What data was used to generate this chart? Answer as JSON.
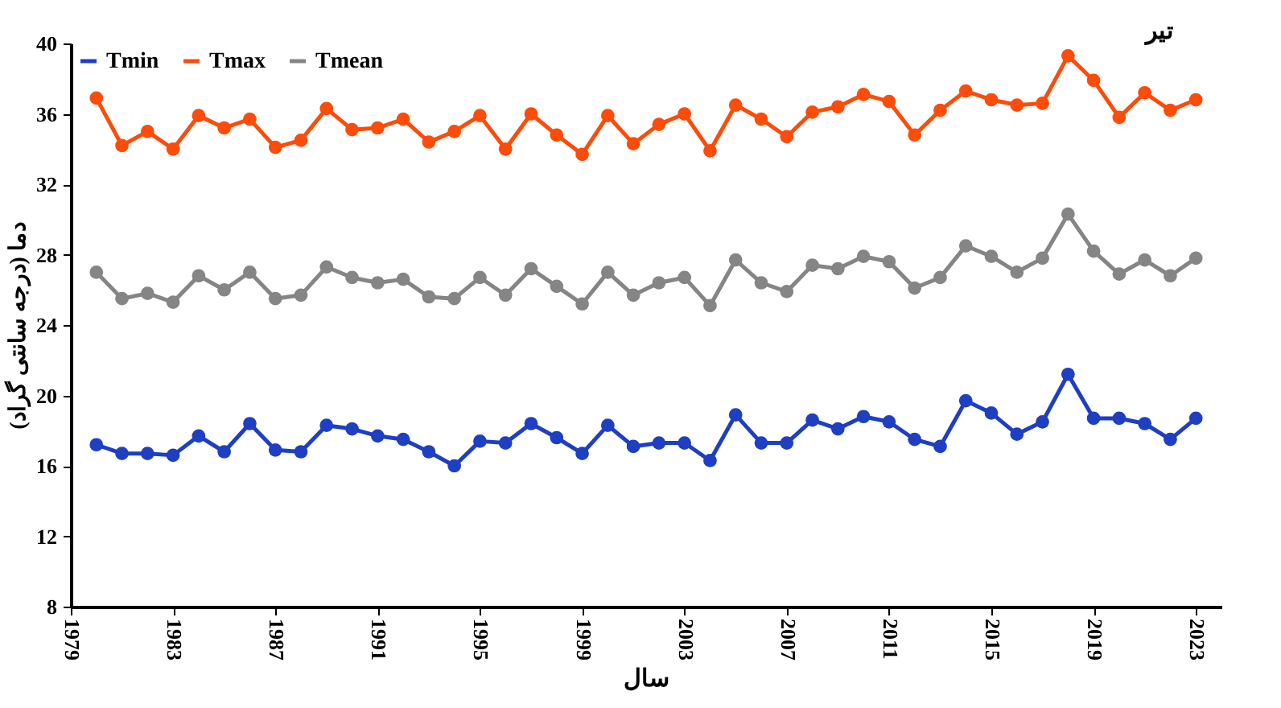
{
  "chart_data": {
    "type": "line",
    "title": "تیر",
    "xlabel": "سال",
    "ylabel": "دما (درجه سانتی گراد)",
    "x": [
      1980,
      1981,
      1982,
      1983,
      1984,
      1985,
      1986,
      1987,
      1988,
      1989,
      1990,
      1991,
      1992,
      1993,
      1994,
      1995,
      1996,
      1997,
      1998,
      1999,
      2000,
      2001,
      2002,
      2003,
      2004,
      2005,
      2006,
      2007,
      2008,
      2009,
      2010,
      2011,
      2012,
      2013,
      2014,
      2015,
      2016,
      2017,
      2018,
      2019,
      2020,
      2021,
      2022,
      2023
    ],
    "series": [
      {
        "name": "Tmin",
        "color": "#1f3fc2",
        "values": [
          17.2,
          16.7,
          16.7,
          16.6,
          17.7,
          16.8,
          18.4,
          16.9,
          16.8,
          18.3,
          18.1,
          17.7,
          17.5,
          16.8,
          16.0,
          17.4,
          17.3,
          18.4,
          17.6,
          16.7,
          18.3,
          17.1,
          17.3,
          17.3,
          16.3,
          18.9,
          17.3,
          17.3,
          18.6,
          18.1,
          18.8,
          18.5,
          17.5,
          17.1,
          19.7,
          19.0,
          17.8,
          18.5,
          21.2,
          18.7,
          18.7,
          18.4,
          17.5,
          18.7
        ]
      },
      {
        "name": "Tmax",
        "color": "#fc4c0a",
        "values": [
          36.9,
          34.2,
          35.0,
          34.0,
          35.9,
          35.2,
          35.7,
          34.1,
          34.5,
          36.3,
          35.1,
          35.2,
          35.7,
          34.4,
          35.0,
          35.9,
          34.0,
          36.0,
          34.8,
          33.7,
          35.9,
          34.3,
          35.4,
          36.0,
          33.9,
          36.5,
          35.7,
          34.7,
          36.1,
          36.4,
          37.1,
          36.7,
          34.8,
          36.2,
          37.3,
          36.8,
          36.5,
          36.6,
          39.3,
          37.9,
          35.8,
          37.2,
          36.2,
          36.8
        ]
      },
      {
        "name": "Tmean",
        "color": "#858585",
        "values": [
          27.0,
          25.5,
          25.8,
          25.3,
          26.8,
          26.0,
          27.0,
          25.5,
          25.7,
          27.3,
          26.7,
          26.4,
          26.6,
          25.6,
          25.5,
          26.7,
          25.7,
          27.2,
          26.2,
          25.2,
          27.0,
          25.7,
          26.4,
          26.7,
          25.1,
          27.7,
          26.4,
          25.9,
          27.4,
          27.2,
          27.9,
          27.6,
          26.1,
          26.7,
          28.5,
          27.9,
          27.0,
          27.8,
          30.3,
          28.2,
          26.9,
          27.7,
          26.8,
          27.8
        ]
      }
    ],
    "xlim": [
      1979,
      2024
    ],
    "xticks": [
      1979,
      1983,
      1987,
      1991,
      1995,
      1999,
      2003,
      2007,
      2011,
      2015,
      2019,
      2023
    ],
    "ylim": [
      8,
      40
    ],
    "yticks": [
      8,
      12,
      16,
      20,
      24,
      28,
      32,
      36,
      40
    ],
    "grid": false,
    "legend": "top left",
    "marker": "circle",
    "line_style": "solid"
  }
}
